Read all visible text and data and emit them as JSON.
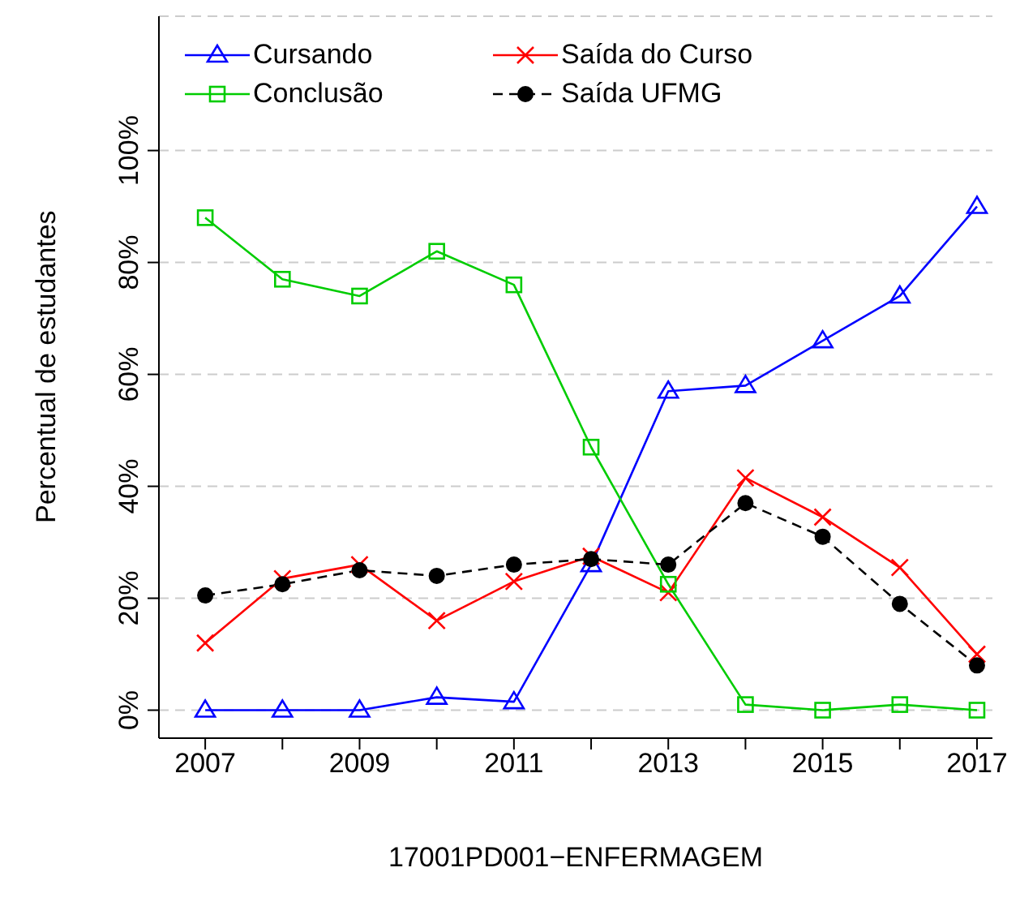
{
  "chart_data": {
    "type": "line",
    "xlabel": "17001PD001−ENFERMAGEM",
    "ylabel": "Percentual de estudantes",
    "x": [
      2007,
      2008,
      2009,
      2010,
      2011,
      2012,
      2013,
      2014,
      2015,
      2016,
      2017
    ],
    "xlim": [
      2006.4,
      2017.2
    ],
    "xticks": [
      2007,
      {
        "value": 2008,
        "label": null
      },
      2009,
      {
        "value": 2010,
        "label": null
      },
      2011,
      {
        "value": 2012,
        "label": null
      },
      2013,
      {
        "value": 2014,
        "label": null
      },
      2015,
      {
        "value": 2016,
        "label": null
      },
      2017
    ],
    "ylim": [
      -5,
      124
    ],
    "yticks": [
      {
        "value": 0,
        "label": "0%"
      },
      {
        "value": 20,
        "label": "20%"
      },
      {
        "value": 40,
        "label": "40%"
      },
      {
        "value": 60,
        "label": "60%"
      },
      {
        "value": 80,
        "label": "80%"
      },
      {
        "value": 100,
        "label": "100%"
      }
    ],
    "grid": "y",
    "legend": "top",
    "series": [
      {
        "name": "Cursando",
        "color": "#0000ff",
        "marker": "triangle",
        "line_style": "solid",
        "values": [
          0,
          0,
          0,
          2.3,
          1.5,
          26,
          57,
          58,
          66,
          74,
          90
        ]
      },
      {
        "name": "Saída do Curso",
        "color": "#ff0000",
        "marker": "cross",
        "line_style": "solid",
        "values": [
          12,
          23.5,
          26,
          16,
          23,
          27.5,
          21,
          41.5,
          34.5,
          25.5,
          10
        ]
      },
      {
        "name": "Conclusão",
        "color": "#00cc00",
        "marker": "square",
        "line_style": "solid",
        "values": [
          88,
          77,
          74,
          82,
          76,
          47,
          22.5,
          1,
          0,
          1,
          0
        ]
      },
      {
        "name": "Saída UFMG",
        "color": "#000000",
        "marker": "circle",
        "line_style": "dashed",
        "values": [
          20.5,
          22.5,
          25,
          24,
          26,
          27,
          26,
          37,
          31,
          19,
          8
        ]
      }
    ]
  }
}
